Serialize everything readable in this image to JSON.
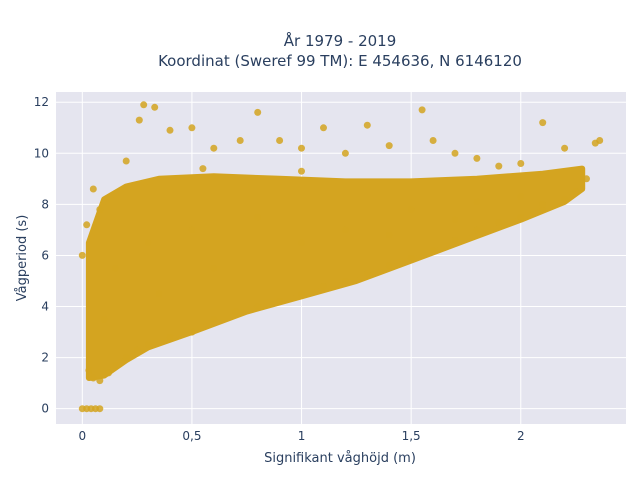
{
  "chart_data": {
    "type": "scatter",
    "title_line1": "År 1979 - 2019",
    "title_line2": "Koordinat (Sweref 99 TM): E 454636, N 6146120",
    "xlabel": "Signifikant våghöjd (m)",
    "ylabel": "Vågperiod (s)",
    "xlim": [
      -0.12,
      2.48
    ],
    "ylim": [
      -0.6,
      12.4
    ],
    "x_ticks": [
      0,
      0.5,
      1,
      1.5,
      2
    ],
    "x_tick_labels": [
      "0",
      "0,5",
      "1",
      "1,5",
      "2"
    ],
    "y_ticks": [
      0,
      2,
      4,
      6,
      8,
      10,
      12
    ],
    "y_tick_labels": [
      "0",
      "2",
      "4",
      "6",
      "8",
      "10",
      "12"
    ],
    "grid": true,
    "marker_color": "#d4a420",
    "plot_bg": "#e5e5ef",
    "series": [
      {
        "points": [
          [
            0.0,
            0.0
          ],
          [
            0.02,
            0.0
          ],
          [
            0.04,
            0.0
          ],
          [
            0.06,
            0.0
          ],
          [
            0.08,
            0.0
          ],
          [
            0.0,
            6.0
          ],
          [
            0.02,
            7.2
          ],
          [
            0.05,
            8.6
          ],
          [
            0.08,
            7.8
          ],
          [
            0.03,
            1.5
          ],
          [
            0.05,
            1.2
          ],
          [
            0.08,
            1.1
          ],
          [
            0.12,
            1.4
          ],
          [
            0.15,
            1.7
          ],
          [
            0.2,
            2.0
          ],
          [
            0.25,
            2.3
          ],
          [
            0.3,
            2.5
          ],
          [
            0.4,
            2.8
          ],
          [
            0.5,
            3.0
          ],
          [
            0.6,
            3.5
          ],
          [
            0.7,
            3.8
          ],
          [
            0.8,
            4.0
          ],
          [
            0.9,
            4.2
          ],
          [
            1.0,
            4.5
          ],
          [
            1.1,
            4.8
          ],
          [
            1.2,
            5.0
          ],
          [
            1.3,
            5.3
          ],
          [
            1.4,
            5.6
          ],
          [
            1.5,
            5.9
          ],
          [
            1.6,
            6.2
          ],
          [
            1.7,
            6.6
          ],
          [
            1.8,
            7.0
          ],
          [
            1.9,
            7.3
          ],
          [
            2.0,
            7.5
          ],
          [
            2.1,
            7.8
          ],
          [
            2.2,
            8.2
          ],
          [
            2.25,
            8.5
          ],
          [
            2.3,
            9.0
          ],
          [
            2.34,
            10.4
          ],
          [
            2.36,
            10.5
          ],
          [
            0.2,
            9.7
          ],
          [
            0.26,
            11.3
          ],
          [
            0.28,
            11.9
          ],
          [
            0.33,
            11.8
          ],
          [
            0.4,
            10.9
          ],
          [
            0.5,
            11.0
          ],
          [
            0.6,
            10.2
          ],
          [
            0.72,
            10.5
          ],
          [
            0.8,
            11.6
          ],
          [
            0.9,
            10.5
          ],
          [
            1.0,
            10.2
          ],
          [
            1.1,
            11.0
          ],
          [
            1.2,
            10.0
          ],
          [
            1.3,
            11.1
          ],
          [
            1.4,
            10.3
          ],
          [
            1.55,
            11.7
          ],
          [
            1.6,
            10.5
          ],
          [
            1.7,
            10.0
          ],
          [
            1.8,
            9.8
          ],
          [
            1.9,
            9.5
          ],
          [
            2.0,
            9.6
          ],
          [
            2.1,
            11.2
          ],
          [
            2.2,
            10.2
          ],
          [
            0.55,
            9.4
          ],
          [
            1.0,
            9.3
          ],
          [
            0.15,
            5.5
          ],
          [
            0.3,
            6.5
          ],
          [
            0.5,
            7.0
          ],
          [
            0.8,
            7.5
          ],
          [
            1.2,
            7.0
          ],
          [
            1.5,
            7.8
          ],
          [
            1.8,
            8.1
          ],
          [
            2.0,
            8.3
          ],
          [
            0.1,
            3.5
          ],
          [
            0.35,
            4.5
          ],
          [
            0.6,
            5.5
          ],
          [
            1.0,
            6.5
          ],
          [
            1.4,
            6.8
          ],
          [
            1.7,
            7.4
          ],
          [
            2.1,
            8.0
          ]
        ]
      }
    ]
  }
}
